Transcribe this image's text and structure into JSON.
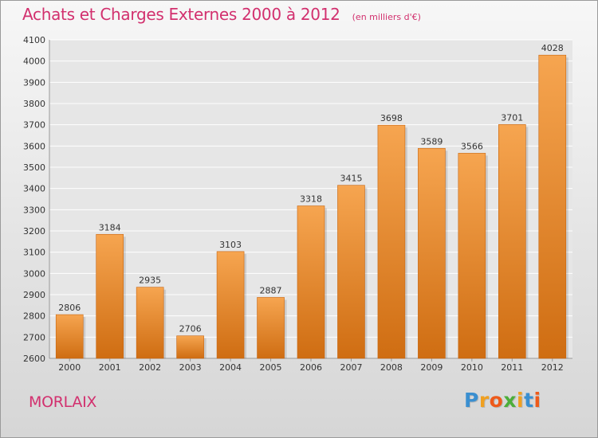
{
  "title": "Achats et Charges Externes 2000 à 2012",
  "subtitle": "(en milliers d'€)",
  "city": "MORLAIX",
  "logo": {
    "text": "Proxiti",
    "colors": [
      "#3a8fd0",
      "#f0a020",
      "#ee5a1a",
      "#4cae3a",
      "#f0a020",
      "#3a8fd0",
      "#ee5a1a"
    ]
  },
  "colors": {
    "accent": "#d2306e",
    "bar_top": "#f6a550",
    "bar_bottom": "#cf6d12"
  },
  "chart_data": {
    "type": "bar",
    "categories": [
      "2000",
      "2001",
      "2002",
      "2003",
      "2004",
      "2005",
      "2006",
      "2007",
      "2008",
      "2009",
      "2010",
      "2011",
      "2012"
    ],
    "values": [
      2806,
      3184,
      2935,
      2706,
      3103,
      2887,
      3318,
      3415,
      3698,
      3589,
      3566,
      3701,
      4028
    ],
    "ylim": [
      2600,
      4100
    ],
    "yticks": [
      2600,
      2700,
      2800,
      2900,
      3000,
      3100,
      3200,
      3300,
      3400,
      3500,
      3600,
      3700,
      3800,
      3900,
      4000,
      4100
    ],
    "grid": true,
    "xlabel": "",
    "ylabel": ""
  }
}
